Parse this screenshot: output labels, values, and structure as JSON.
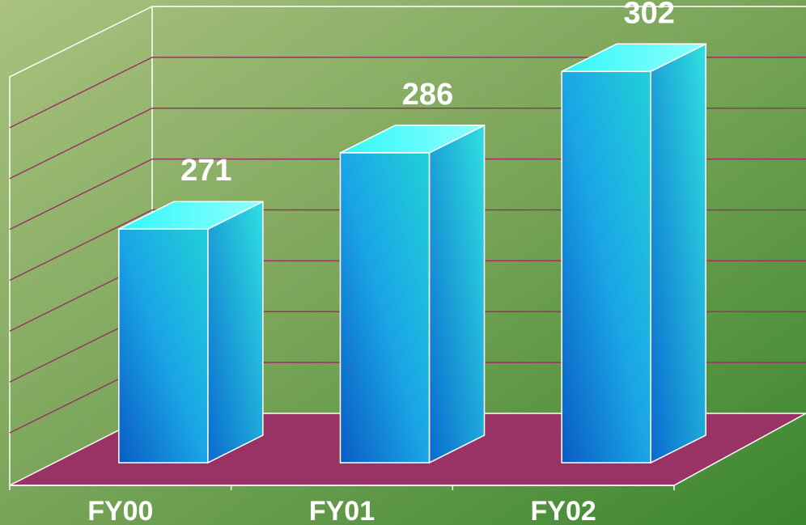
{
  "chart_data": {
    "type": "bar3d",
    "categories": [
      "FY00",
      "FY01",
      "FY02"
    ],
    "values": [
      271,
      286,
      302
    ],
    "color": "#14a8e0",
    "ylim": [
      230,
      310
    ],
    "yticks": [
      230,
      240,
      250,
      260,
      270,
      280,
      290,
      300,
      310
    ],
    "grid": true
  }
}
